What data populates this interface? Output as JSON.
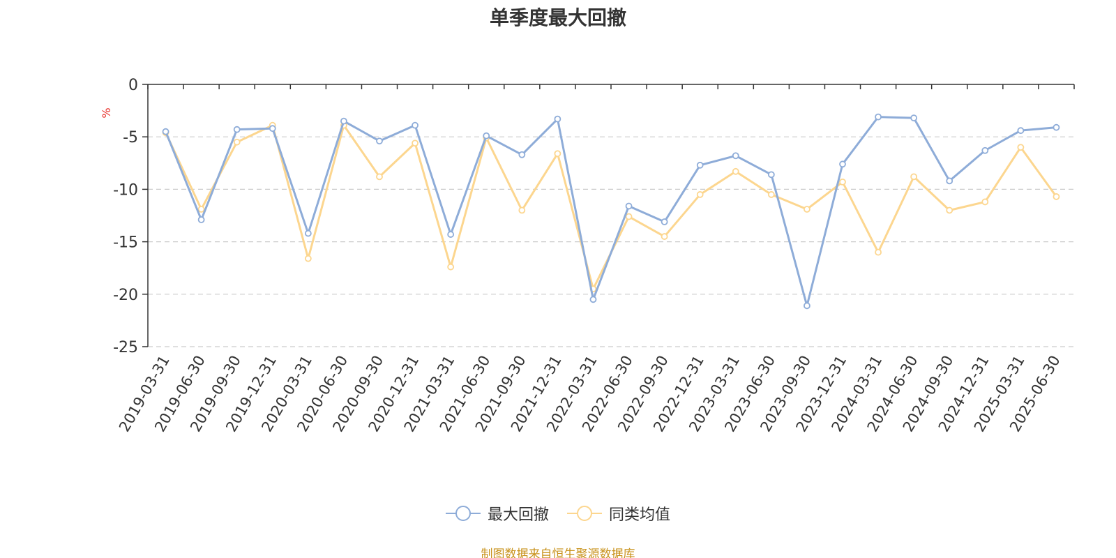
{
  "chart_data": {
    "type": "line",
    "title": "单季度最大回撤",
    "ylabel": "%",
    "ylim": [
      -25,
      0
    ],
    "yticks": [
      0,
      -5,
      -10,
      -15,
      -20,
      -25
    ],
    "grid": true,
    "legend_position": "bottom",
    "categories": [
      "2019-03-31",
      "2019-06-30",
      "2019-09-30",
      "2019-12-31",
      "2020-03-31",
      "2020-06-30",
      "2020-09-30",
      "2020-12-31",
      "2021-03-31",
      "2021-06-30",
      "2021-09-30",
      "2021-12-31",
      "2022-03-31",
      "2022-06-30",
      "2022-09-30",
      "2022-12-31",
      "2023-03-31",
      "2023-06-30",
      "2023-09-30",
      "2023-12-31",
      "2024-03-31",
      "2024-06-30",
      "2024-09-30",
      "2024-12-31",
      "2025-03-31",
      "2025-06-30"
    ],
    "series": [
      {
        "name": "最大回撤",
        "color": "#8eacd8",
        "values": [
          -4.5,
          -12.9,
          -4.3,
          -4.2,
          -14.2,
          -3.5,
          -5.4,
          -3.9,
          -14.3,
          -4.9,
          -6.7,
          -3.3,
          -20.5,
          -11.6,
          -13.1,
          -7.7,
          -6.8,
          -8.6,
          -21.1,
          -7.6,
          -3.1,
          -3.2,
          -9.2,
          -6.3,
          -4.4,
          -4.1
        ]
      },
      {
        "name": "同类均值",
        "color": "#fcd68f",
        "values": [
          -4.6,
          -11.9,
          -5.5,
          -3.9,
          -16.6,
          -3.9,
          -8.8,
          -5.6,
          -17.4,
          -5.1,
          -12.0,
          -6.6,
          -19.5,
          -12.6,
          -14.5,
          -10.5,
          -8.3,
          -10.5,
          -11.9,
          -9.3,
          -16.0,
          -8.8,
          -12.0,
          -11.2,
          -6.0,
          -10.7
        ]
      }
    ]
  },
  "legend": {
    "items": [
      {
        "label": "最大回撤",
        "color": "#8eacd8"
      },
      {
        "label": "同类均值",
        "color": "#fcd68f"
      }
    ]
  },
  "footer": {
    "source": "制图数据来自恒生聚源数据库"
  }
}
